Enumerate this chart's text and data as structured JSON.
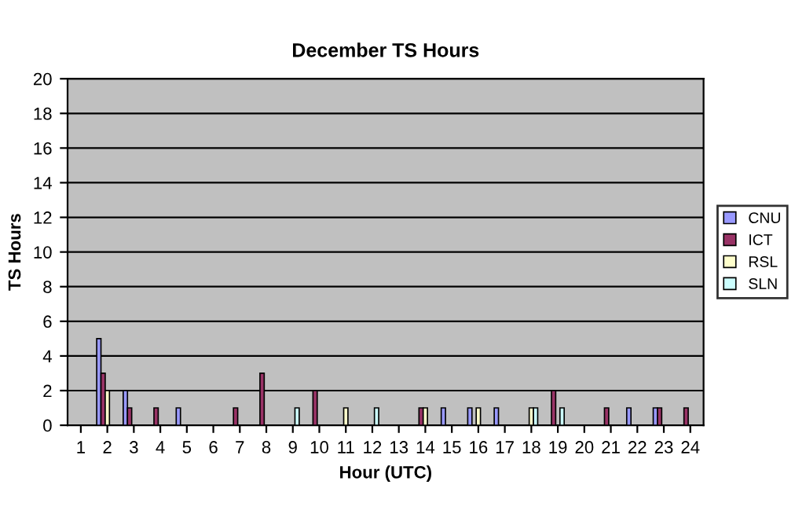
{
  "chart_data": {
    "type": "bar",
    "title": "December TS Hours",
    "xlabel": "Hour (UTC)",
    "ylabel": "TS Hours",
    "categories": [
      "1",
      "2",
      "3",
      "4",
      "5",
      "6",
      "7",
      "8",
      "9",
      "10",
      "11",
      "12",
      "13",
      "14",
      "15",
      "16",
      "17",
      "18",
      "19",
      "20",
      "21",
      "22",
      "23",
      "24"
    ],
    "series": [
      {
        "name": "CNU",
        "color": "#9999ff",
        "values": [
          null,
          5,
          2,
          null,
          1,
          null,
          null,
          null,
          null,
          null,
          null,
          null,
          null,
          null,
          1,
          1,
          1,
          null,
          null,
          null,
          null,
          1,
          1,
          null
        ]
      },
      {
        "name": "ICT",
        "color": "#993366",
        "values": [
          null,
          3,
          1,
          1,
          null,
          null,
          1,
          3,
          null,
          2,
          null,
          null,
          null,
          1,
          null,
          null,
          null,
          null,
          2,
          null,
          1,
          null,
          1,
          1
        ]
      },
      {
        "name": "RSL",
        "color": "#ffffcc",
        "values": [
          null,
          2,
          null,
          null,
          null,
          null,
          null,
          null,
          null,
          null,
          1,
          null,
          null,
          1,
          null,
          1,
          null,
          1,
          null,
          null,
          null,
          null,
          null,
          null
        ]
      },
      {
        "name": "SLN",
        "color": "#ccffff",
        "values": [
          null,
          null,
          null,
          null,
          null,
          null,
          null,
          null,
          1,
          null,
          null,
          1,
          null,
          null,
          null,
          null,
          null,
          1,
          1,
          null,
          null,
          null,
          null,
          null
        ]
      }
    ],
    "ylim": [
      0,
      20
    ],
    "yticks": [
      0,
      2,
      4,
      6,
      8,
      10,
      12,
      14,
      16,
      18,
      20
    ],
    "grid": "y",
    "legend": "right"
  }
}
